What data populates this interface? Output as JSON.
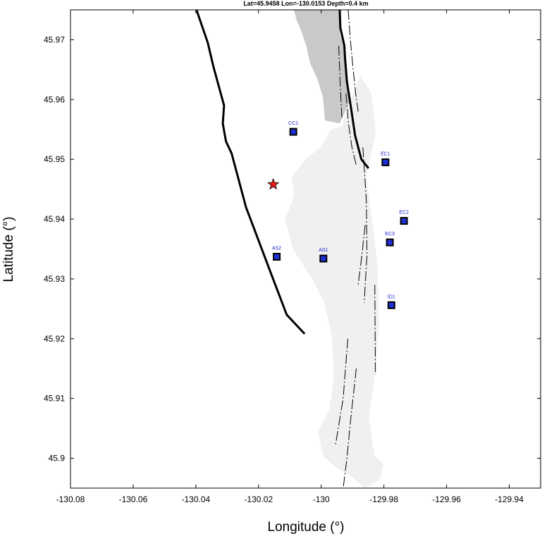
{
  "title": "Lat=45.9458  Lon=-130.0153  Depth=0.4 km",
  "colors": {
    "coastline_fill": "#f0f0f0",
    "dark_region_fill": "#c9c9c9",
    "outer_fault": "#000000",
    "fissure": "#000000",
    "station_marker_fill": "#1f2fd6",
    "station_label": "#1a22c8",
    "epicenter_fill": "#e41b1b"
  },
  "chart_data": {
    "type": "scatter",
    "xlabel": "Longitude (°)",
    "ylabel": "Latitude (°)",
    "xlim": [
      -130.08,
      -129.93
    ],
    "ylim": [
      45.895,
      45.975
    ],
    "xticks": [
      -130.08,
      -130.06,
      -130.04,
      -130.02,
      -130,
      -129.98,
      -129.96,
      -129.94
    ],
    "xtick_labels": [
      "-130.08",
      "-130.06",
      "-130.04",
      "-130.02",
      "-130",
      "-129.98",
      "-129.96",
      "-129.94"
    ],
    "yticks": [
      45.9,
      45.91,
      45.92,
      45.93,
      45.94,
      45.95,
      45.96,
      45.97
    ],
    "ytick_labels": [
      "45.9",
      "45.91",
      "45.92",
      "45.93",
      "45.94",
      "45.95",
      "45.96",
      "45.97"
    ],
    "grid": false,
    "epicenter": {
      "lon": -130.0153,
      "lat": 45.9458,
      "symbol": "star"
    },
    "stations": [
      {
        "name": "CC1",
        "lon": -130.0089,
        "lat": 45.9546
      },
      {
        "name": "EC1",
        "lon": -129.9795,
        "lat": 45.9495
      },
      {
        "name": "EC2",
        "lon": -129.9736,
        "lat": 45.9397
      },
      {
        "name": "EC3",
        "lon": -129.9781,
        "lat": 45.9361
      },
      {
        "name": "AS2",
        "lon": -130.0142,
        "lat": 45.9337
      },
      {
        "name": "AS1",
        "lon": -129.9993,
        "lat": 45.9334
      },
      {
        "name": "ID1",
        "lon": -129.9776,
        "lat": 45.9256
      }
    ],
    "caldera_rim_west": [
      [
        -130.0398,
        45.975
      ],
      [
        -130.0362,
        45.9695
      ],
      [
        -130.0344,
        45.9655
      ],
      [
        -130.031,
        45.959
      ],
      [
        -130.0314,
        45.956
      ],
      [
        -130.0304,
        45.953
      ],
      [
        -130.0286,
        45.951
      ],
      [
        -130.024,
        45.942
      ],
      [
        -130.0168,
        45.932
      ],
      [
        -130.011,
        45.924
      ],
      [
        -130.0053,
        45.9208
      ]
    ],
    "caldera_rim_east": [
      [
        -129.9941,
        45.975
      ],
      [
        -129.9939,
        45.972
      ],
      [
        -129.9926,
        45.969
      ],
      [
        -129.9924,
        45.967
      ],
      [
        -129.9918,
        45.963
      ],
      [
        -129.9906,
        45.959
      ],
      [
        -129.9892,
        45.954
      ],
      [
        -129.9872,
        45.95
      ],
      [
        -129.9849,
        45.9485
      ]
    ],
    "fissures": [
      [
        [
          -129.9914,
          45.975
        ],
        [
          -129.9907,
          45.97
        ],
        [
          -129.9898,
          45.965
        ],
        [
          -129.989,
          45.961
        ],
        [
          -129.9882,
          45.958
        ]
      ],
      [
        [
          -129.9944,
          45.969
        ],
        [
          -129.9939,
          45.962
        ],
        [
          -129.9934,
          45.957
        ]
      ],
      [
        [
          -129.9921,
          45.961
        ],
        [
          -129.9913,
          45.956
        ],
        [
          -129.9902,
          45.952
        ],
        [
          -129.9888,
          45.949
        ]
      ],
      [
        [
          -129.9867,
          45.952
        ],
        [
          -129.9856,
          45.943
        ],
        [
          -129.9854,
          45.934
        ],
        [
          -129.9863,
          45.926
        ]
      ],
      [
        [
          -129.986,
          45.939
        ],
        [
          -129.987,
          45.934
        ],
        [
          -129.9882,
          45.929
        ]
      ],
      [
        [
          -129.9829,
          45.929
        ],
        [
          -129.9828,
          45.921
        ],
        [
          -129.9827,
          45.914
        ]
      ],
      [
        [
          -129.9888,
          45.915
        ],
        [
          -129.9905,
          45.907
        ],
        [
          -129.9918,
          45.9
        ],
        [
          -129.993,
          45.895
        ]
      ],
      [
        [
          -129.9915,
          45.92
        ],
        [
          -129.993,
          45.91
        ],
        [
          -129.9955,
          45.902
        ]
      ]
    ],
    "dark_region": [
      [
        -130.0087,
        45.975
      ],
      [
        -129.9941,
        45.975
      ],
      [
        -129.9941,
        45.971
      ],
      [
        -129.9928,
        45.969
      ],
      [
        -129.9921,
        45.964
      ],
      [
        -129.9907,
        45.96
      ],
      [
        -129.9941,
        45.956
      ],
      [
        -129.9988,
        45.9565
      ],
      [
        -129.9995,
        45.9605
      ],
      [
        -130.0013,
        45.9635
      ],
      [
        -130.0035,
        45.966
      ],
      [
        -130.0048,
        45.969
      ],
      [
        -130.0064,
        45.9715
      ],
      [
        -130.008,
        45.9735
      ]
    ],
    "light_region": [
      [
        -130.005,
        45.95
      ],
      [
        -130.0003,
        45.952
      ],
      [
        -129.9968,
        45.955
      ],
      [
        -129.9935,
        45.9555
      ],
      [
        -129.9905,
        45.96
      ],
      [
        -129.9875,
        45.964
      ],
      [
        -129.984,
        45.961
      ],
      [
        -129.9826,
        45.9545
      ],
      [
        -129.9856,
        45.947
      ],
      [
        -129.9835,
        45.939
      ],
      [
        -129.982,
        45.932
      ],
      [
        -129.9815,
        45.922
      ],
      [
        -129.9828,
        45.914
      ],
      [
        -129.9848,
        45.907
      ],
      [
        -129.983,
        45.9005
      ],
      [
        -129.9802,
        45.899
      ],
      [
        -129.9812,
        45.8965
      ],
      [
        -129.986,
        45.895
      ],
      [
        -129.9905,
        45.897
      ],
      [
        -129.9955,
        45.8985
      ],
      [
        -129.9995,
        45.9005
      ],
      [
        -130.001,
        45.9045
      ],
      [
        -129.9975,
        45.908
      ],
      [
        -129.996,
        45.913
      ],
      [
        -129.9965,
        45.92
      ],
      [
        -129.999,
        45.926
      ],
      [
        -130.003,
        45.93
      ],
      [
        -130.009,
        45.935
      ],
      [
        -130.0115,
        45.94
      ],
      [
        -130.0085,
        45.944
      ],
      [
        -130.0095,
        45.947
      ]
    ]
  }
}
